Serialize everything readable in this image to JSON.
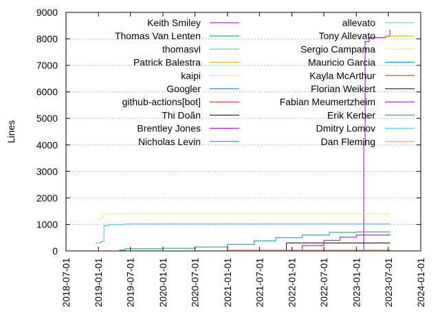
{
  "chart_data": {
    "type": "line",
    "ylabel": "Lines",
    "xlabel": "",
    "ylim": [
      0,
      9000
    ],
    "xlim": [
      "2018-07-01",
      "2024-01-01"
    ],
    "x_ticks": [
      "2018-07-01",
      "2019-01-01",
      "2019-07-01",
      "2020-01-01",
      "2020-07-01",
      "2021-01-01",
      "2021-07-01",
      "2022-01-01",
      "2022-07-01",
      "2023-01-01",
      "2023-07-01",
      "2024-01-01"
    ],
    "y_ticks": [
      0,
      1000,
      2000,
      3000,
      4000,
      5000,
      6000,
      7000,
      8000,
      9000
    ],
    "grid": "horizontal-dotted",
    "legend_placement": "top, two columns",
    "series": [
      {
        "name": "Keith Smiley",
        "color": "#9400d3",
        "points": [
          [
            "2023-01-05",
            0
          ],
          [
            "2023-02-10",
            0
          ],
          [
            "2023-02-12",
            4000
          ],
          [
            "2023-02-20",
            7900
          ],
          [
            "2023-03-15",
            8050
          ],
          [
            "2023-06-15",
            8100
          ],
          [
            "2023-07-10",
            8350
          ]
        ]
      },
      {
        "name": "Thomas Van Lenten",
        "color": "#009e73",
        "points": [
          [
            "2019-02-01",
            0
          ],
          [
            "2019-05-01",
            30
          ],
          [
            "2019-06-01",
            80
          ],
          [
            "2020-01-01",
            100
          ],
          [
            "2020-07-01",
            150
          ],
          [
            "2021-01-01",
            250
          ],
          [
            "2021-06-01",
            380
          ],
          [
            "2021-10-01",
            500
          ],
          [
            "2022-03-01",
            600
          ],
          [
            "2022-08-01",
            700
          ],
          [
            "2023-01-01",
            720
          ],
          [
            "2023-07-10",
            730
          ]
        ]
      },
      {
        "name": "thomasvl",
        "color": "#56b4e9",
        "points": [
          [
            "2018-12-15",
            300
          ],
          [
            "2019-01-15",
            350
          ],
          [
            "2019-02-01",
            950
          ],
          [
            "2019-03-01",
            1000
          ],
          [
            "2019-06-01",
            1020
          ],
          [
            "2023-07-10",
            1020
          ]
        ]
      },
      {
        "name": "Patrick Balestra",
        "color": "#e69f00",
        "points": [
          [
            "2021-01-01",
            0
          ],
          [
            "2023-07-10",
            30
          ]
        ]
      },
      {
        "name": "kaipi",
        "color": "#f0e442",
        "points": [
          [
            "2018-12-20",
            1200
          ],
          [
            "2019-01-10",
            1200
          ],
          [
            "2019-01-20",
            1300
          ],
          [
            "2019-02-01",
            1400
          ],
          [
            "2023-07-10",
            1400
          ]
        ]
      },
      {
        "name": "Googler",
        "color": "#0072b2",
        "points": [
          [
            "2019-06-01",
            0
          ],
          [
            "2023-07-10",
            10
          ]
        ]
      },
      {
        "name": "github-actions[bot]",
        "color": "#e51e10",
        "points": [
          [
            "2021-01-15",
            0
          ],
          [
            "2023-07-10",
            5
          ]
        ]
      },
      {
        "name": "Thi Doãn",
        "color": "#000000",
        "points": [
          [
            "2021-07-01",
            0
          ],
          [
            "2021-10-01",
            0
          ],
          [
            "2021-12-01",
            300
          ],
          [
            "2023-07-10",
            300
          ]
        ]
      },
      {
        "name": "Brentley Jones",
        "color": "#9400d3",
        "points": [
          [
            "2022-01-01",
            0
          ],
          [
            "2022-03-01",
            200
          ],
          [
            "2022-07-01",
            400
          ],
          [
            "2022-10-01",
            520
          ],
          [
            "2023-01-01",
            600
          ],
          [
            "2023-07-10",
            620
          ]
        ]
      },
      {
        "name": "Nicholas Levin",
        "color": "#009e73",
        "points": [
          [
            "2019-09-01",
            0
          ],
          [
            "2023-07-10",
            20
          ]
        ]
      },
      {
        "name": "allevato",
        "color": "#56b4e9",
        "points": [
          [
            "2018-12-15",
            0
          ],
          [
            "2023-07-10",
            5
          ]
        ]
      },
      {
        "name": "Tony Allevato",
        "color": "#e69f00",
        "points": [
          [
            "2019-01-01",
            0
          ],
          [
            "2021-01-01",
            30
          ],
          [
            "2023-07-10",
            60
          ]
        ]
      },
      {
        "name": "Sergio Campama",
        "color": "#f0e442",
        "points": [
          [
            "2019-03-01",
            0
          ],
          [
            "2023-07-10",
            10
          ]
        ]
      },
      {
        "name": "Mauricio Garcia",
        "color": "#0072b2",
        "points": [
          [
            "2020-06-01",
            0
          ],
          [
            "2023-07-10",
            5
          ]
        ]
      },
      {
        "name": "Kayla McArthur",
        "color": "#e51e10",
        "points": [
          [
            "2021-03-01",
            0
          ],
          [
            "2023-07-10",
            5
          ]
        ]
      },
      {
        "name": "Florian Weikert",
        "color": "#000000",
        "points": [
          [
            "2021-06-01",
            0
          ],
          [
            "2023-07-10",
            5
          ]
        ]
      },
      {
        "name": "Fabian Meumertzheim",
        "color": "#9400d3",
        "points": [
          [
            "2022-04-01",
            0
          ],
          [
            "2023-07-10",
            5
          ]
        ]
      },
      {
        "name": "Erik Kerber",
        "color": "#009e73",
        "points": [
          [
            "2021-09-01",
            0
          ],
          [
            "2023-07-10",
            5
          ]
        ]
      },
      {
        "name": "Dmitry Lomov",
        "color": "#56b4e9",
        "points": [
          [
            "2019-02-01",
            0
          ],
          [
            "2023-07-10",
            5
          ]
        ]
      },
      {
        "name": "Dan Fleming",
        "color": "#e69f00",
        "points": [
          [
            "2022-06-01",
            0
          ],
          [
            "2023-07-10",
            5
          ]
        ]
      }
    ]
  }
}
